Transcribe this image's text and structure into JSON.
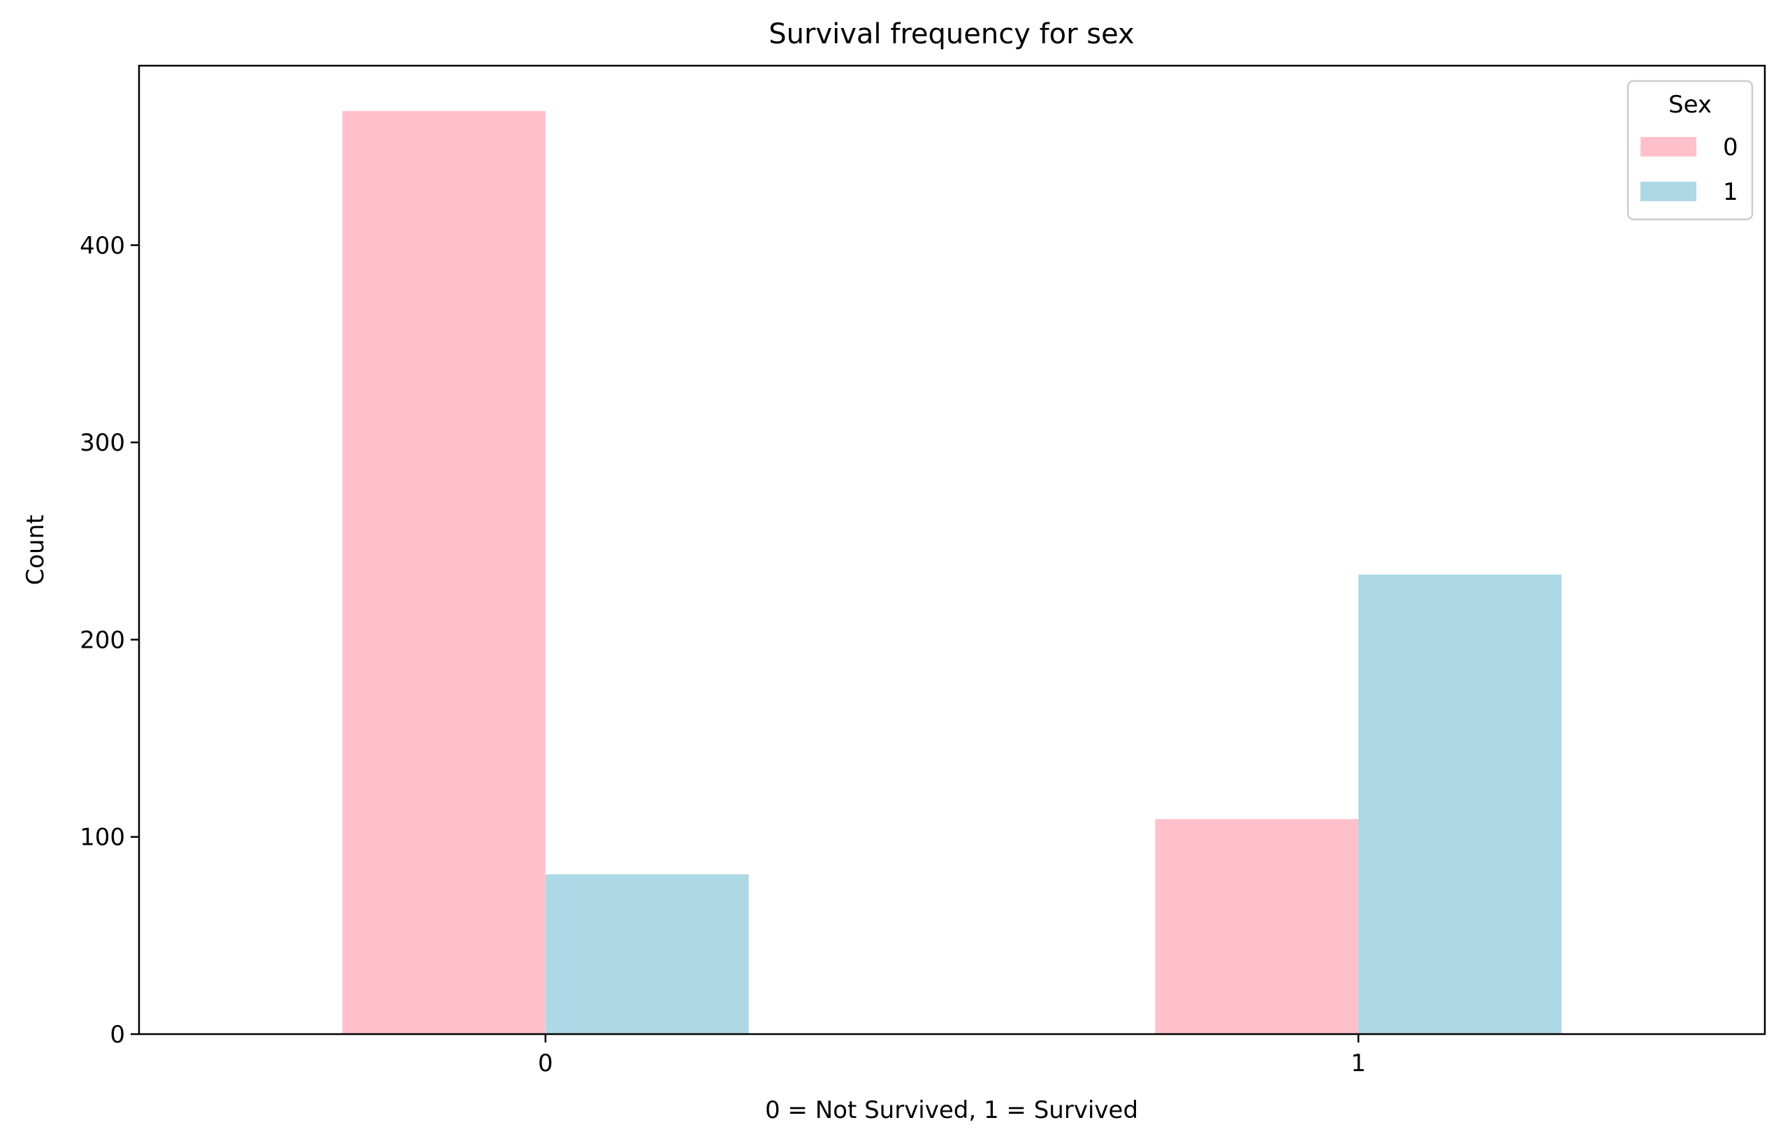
{
  "chart_data": {
    "type": "bar",
    "title": "Survival frequency for sex",
    "xlabel": "0 = Not Survived, 1 = Survived",
    "ylabel": "Count",
    "categories": [
      "0",
      "1"
    ],
    "series": [
      {
        "name": "0",
        "values": [
          468,
          109
        ],
        "color": "#ffc0cb"
      },
      {
        "name": "1",
        "values": [
          81,
          233
        ],
        "color": "#add8e6"
      }
    ],
    "ylim": [
      0,
      491
    ],
    "yticks": [
      0,
      100,
      200,
      300,
      400
    ],
    "legend": {
      "title": "Sex",
      "placement": "top-right"
    },
    "grid": false
  }
}
